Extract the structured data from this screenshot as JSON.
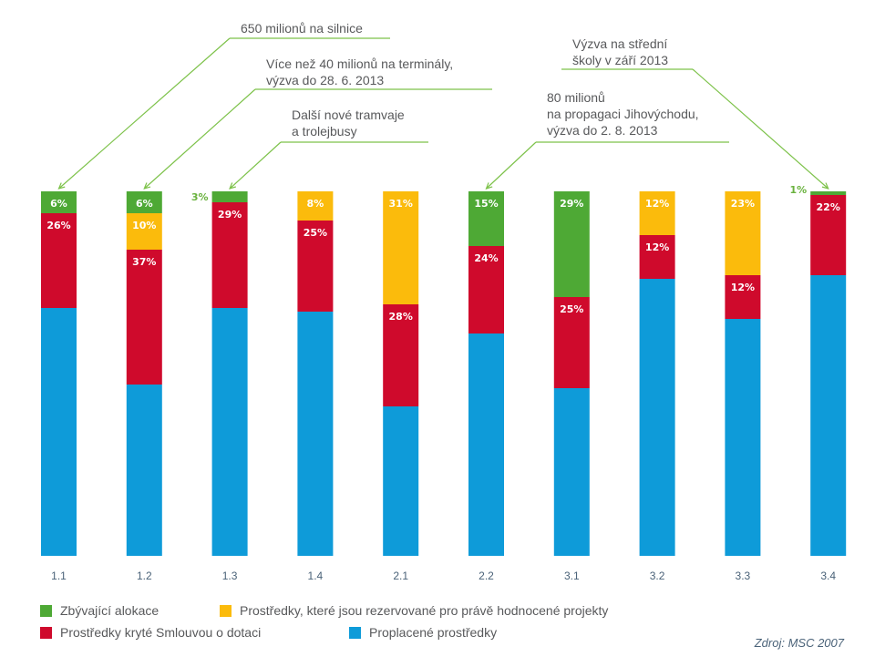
{
  "chart_data": {
    "type": "bar",
    "stacked": true,
    "percent": true,
    "categories": [
      "1.1",
      "1.2",
      "1.3",
      "1.4",
      "2.1",
      "2.2",
      "3.1",
      "3.2",
      "3.3",
      "3.4"
    ],
    "series": [
      {
        "name": "Proplacené prostředky",
        "color": "#0e9bd9",
        "values": [
          68,
          47,
          68,
          67,
          41,
          61,
          46,
          76,
          65,
          77
        ]
      },
      {
        "name": "Prostředky kryté Smlouvou o dotaci",
        "color": "#cf0a2c",
        "values": [
          26,
          37,
          29,
          25,
          28,
          24,
          25,
          12,
          12,
          22
        ]
      },
      {
        "name": "Prostředky, které jsou rezervované pro právě hodnocené projekty",
        "color": "#fbbb0c",
        "values": [
          0,
          10,
          0,
          8,
          31,
          0,
          0,
          12,
          23,
          0
        ]
      },
      {
        "name": "Zbývající alokace",
        "color": "#4ea935",
        "values": [
          6,
          6,
          3,
          0,
          0,
          15,
          29,
          0,
          0,
          1
        ]
      }
    ],
    "data_labels": [
      {
        "category": "1.1",
        "series": "Zbývající alokace",
        "text": "6%"
      },
      {
        "category": "1.1",
        "series": "Prostředky kryté Smlouvou o dotaci",
        "text": "26%"
      },
      {
        "category": "1.2",
        "series": "Prostředky, které jsou rezervované pro právě hodnocené projekty",
        "text": "10%"
      },
      {
        "category": "1.2",
        "series": "Zbývající alokace",
        "text": "6%"
      },
      {
        "category": "1.2",
        "series": "Prostředky kryté Smlouvou o dotaci",
        "text": "37%"
      },
      {
        "category": "1.3",
        "series": "Zbývající alokace",
        "text": "3%",
        "outside": true
      },
      {
        "category": "1.3",
        "series": "Prostředky kryté Smlouvou o dotaci",
        "text": "29%"
      },
      {
        "category": "1.4",
        "series": "Prostředky, které jsou rezervované pro právě hodnocené projekty",
        "text": "8%"
      },
      {
        "category": "1.4",
        "series": "Prostředky kryté Smlouvou o dotaci",
        "text": "25%"
      },
      {
        "category": "2.1",
        "series": "Prostředky, které jsou rezervované pro právě hodnocené projekty",
        "text": "31%"
      },
      {
        "category": "2.1",
        "series": "Prostředky kryté Smlouvou o dotaci",
        "text": "28%"
      },
      {
        "category": "2.2",
        "series": "Zbývající alokace",
        "text": "15%"
      },
      {
        "category": "2.2",
        "series": "Prostředky kryté Smlouvou o dotaci",
        "text": "24%"
      },
      {
        "category": "3.1",
        "series": "Zbývající alokace",
        "text": "29%"
      },
      {
        "category": "3.1",
        "series": "Prostředky kryté Smlouvou o dotaci",
        "text": "25%"
      },
      {
        "category": "3.2",
        "series": "Prostředky, které jsou rezervované pro právě hodnocené projekty",
        "text": "12%"
      },
      {
        "category": "3.2",
        "series": "Prostředky kryté Smlouvou o dotaci",
        "text": "12%"
      },
      {
        "category": "3.3",
        "series": "Prostředky, které jsou rezervované pro právě hodnocené projekty",
        "text": "23%"
      },
      {
        "category": "3.3",
        "series": "Prostředky kryté Smlouvou o dotaci",
        "text": "12%"
      },
      {
        "category": "3.4",
        "series": "Zbývající alokace",
        "text": "1%",
        "outside": true
      },
      {
        "category": "3.4",
        "series": "Prostředky kryté Smlouvou o dotaci",
        "text": "22%"
      }
    ],
    "annotations": [
      {
        "category": "1.1",
        "lines": [
          "650 milionů na silnice"
        ]
      },
      {
        "category": "1.2",
        "lines": [
          "Více než 40 milionů na terminály,",
          "výzva do 28. 6. 2013"
        ]
      },
      {
        "category": "1.3",
        "lines": [
          "Další nové tramvaje",
          "a trolejbusy"
        ]
      },
      {
        "category": "2.2",
        "lines": [
          "80 milionů",
          "na propagaci Jihovýchodu,",
          "výzva do 2. 8. 2013"
        ]
      },
      {
        "category": "3.4",
        "lines": [
          "Výzva na střední",
          "školy v září 2013"
        ]
      }
    ],
    "annotation_color": "#7dc24a",
    "ylim": [
      0,
      100
    ],
    "grid": false,
    "legend_position": "bottom",
    "source": "Zdroj: MSC 2007"
  },
  "legend": [
    {
      "label": "Zbývající alokace",
      "color": "#4ea935"
    },
    {
      "label": "Prostředky, které jsou rezervované pro právě hodnocené projekty",
      "color": "#fbbb0c"
    },
    {
      "label": "Prostředky kryté Smlouvou o dotaci",
      "color": "#cf0a2c"
    },
    {
      "label": "Proplacené prostředky",
      "color": "#0e9bd9"
    }
  ]
}
